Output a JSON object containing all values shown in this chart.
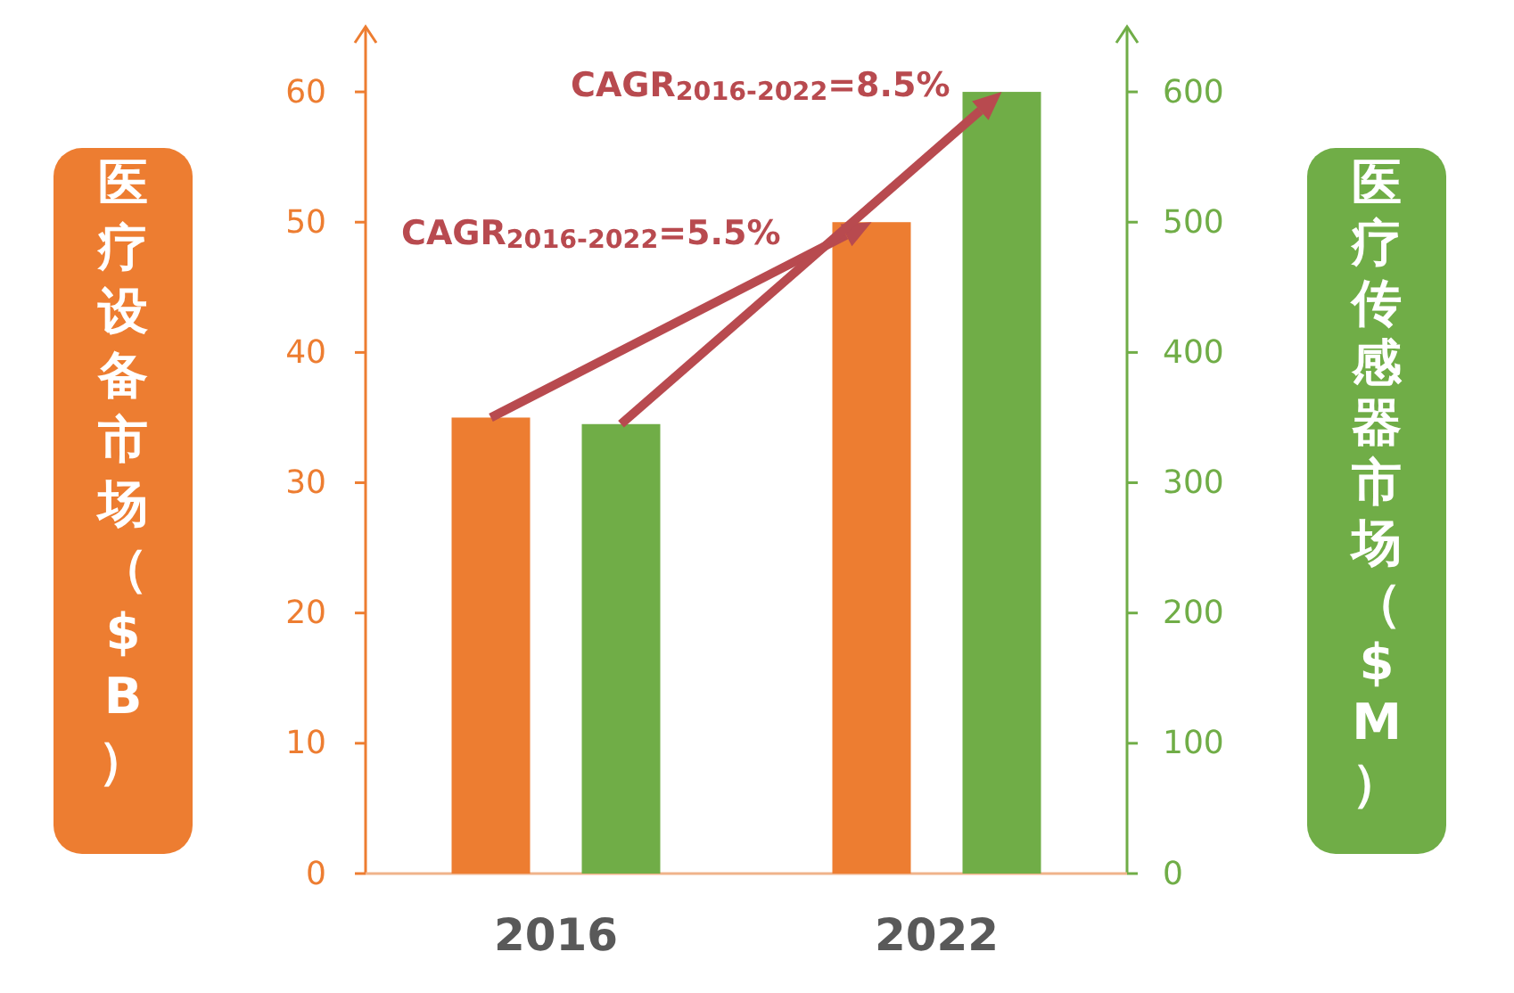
{
  "chart_data": {
    "type": "bar",
    "categories": [
      "2016",
      "2022"
    ],
    "series": [
      {
        "color": "#ed7d31",
        "values": [
          35,
          50
        ]
      },
      {
        "color": "#70ad47",
        "values": [
          345,
          600
        ],
        "axis": "y2"
      }
    ],
    "ylabel": "医疗设备市场（$B）",
    "y2label": "医疗传感器市场（$M）",
    "ylim": [
      0,
      65
    ],
    "yticks": [
      0,
      10,
      20,
      30,
      40,
      50,
      60
    ],
    "y2lim": [
      0,
      650
    ],
    "y2ticks": [
      0,
      100,
      200,
      300,
      400,
      500,
      600
    ],
    "annotations": [
      "CAGR$_{2016-2022}$=8.5%",
      "CAGR$_{2016-2022}$=5.5%"
    ],
    "grid": false
  }
}
